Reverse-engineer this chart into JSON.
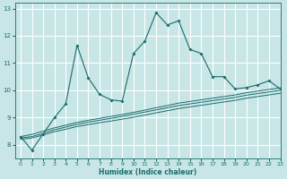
{
  "xlabel": "Humidex (Indice chaleur)",
  "xlim": [
    -0.5,
    23
  ],
  "ylim": [
    7.5,
    13.2
  ],
  "yticks": [
    8,
    9,
    10,
    11,
    12,
    13
  ],
  "xticks": [
    0,
    1,
    2,
    3,
    4,
    5,
    6,
    7,
    8,
    9,
    10,
    11,
    12,
    13,
    14,
    15,
    16,
    17,
    18,
    19,
    20,
    21,
    22,
    23
  ],
  "bg_color": "#c8e6e6",
  "grid_color": "#ffffff",
  "line_color": "#1a6b6b",
  "main_x": [
    0,
    1,
    2,
    3,
    4,
    5,
    6,
    7,
    8,
    9,
    10,
    11,
    12,
    13,
    14,
    15,
    16,
    17,
    18,
    19,
    20,
    21,
    22,
    23
  ],
  "main_y": [
    8.3,
    7.8,
    8.4,
    9.0,
    9.5,
    11.65,
    10.45,
    9.85,
    9.65,
    9.6,
    11.35,
    11.8,
    12.85,
    12.4,
    12.55,
    11.5,
    11.35,
    10.5,
    10.5,
    10.05,
    10.1,
    10.2,
    10.35,
    10.05
  ],
  "smooth1_y": [
    8.25,
    8.3,
    8.42,
    8.55,
    8.65,
    8.75,
    8.83,
    8.9,
    8.97,
    9.04,
    9.12,
    9.2,
    9.28,
    9.36,
    9.44,
    9.5,
    9.56,
    9.62,
    9.68,
    9.74,
    9.82,
    9.88,
    9.94,
    10.0
  ],
  "smooth2_y": [
    8.3,
    8.38,
    8.5,
    8.62,
    8.72,
    8.82,
    8.9,
    8.97,
    9.04,
    9.11,
    9.19,
    9.27,
    9.36,
    9.44,
    9.53,
    9.59,
    9.65,
    9.71,
    9.77,
    9.83,
    9.91,
    9.97,
    10.03,
    10.09
  ],
  "smooth3_y": [
    8.2,
    8.25,
    8.36,
    8.48,
    8.57,
    8.67,
    8.74,
    8.81,
    8.87,
    8.94,
    9.01,
    9.09,
    9.17,
    9.25,
    9.33,
    9.39,
    9.45,
    9.51,
    9.57,
    9.63,
    9.71,
    9.77,
    9.83,
    9.89
  ]
}
